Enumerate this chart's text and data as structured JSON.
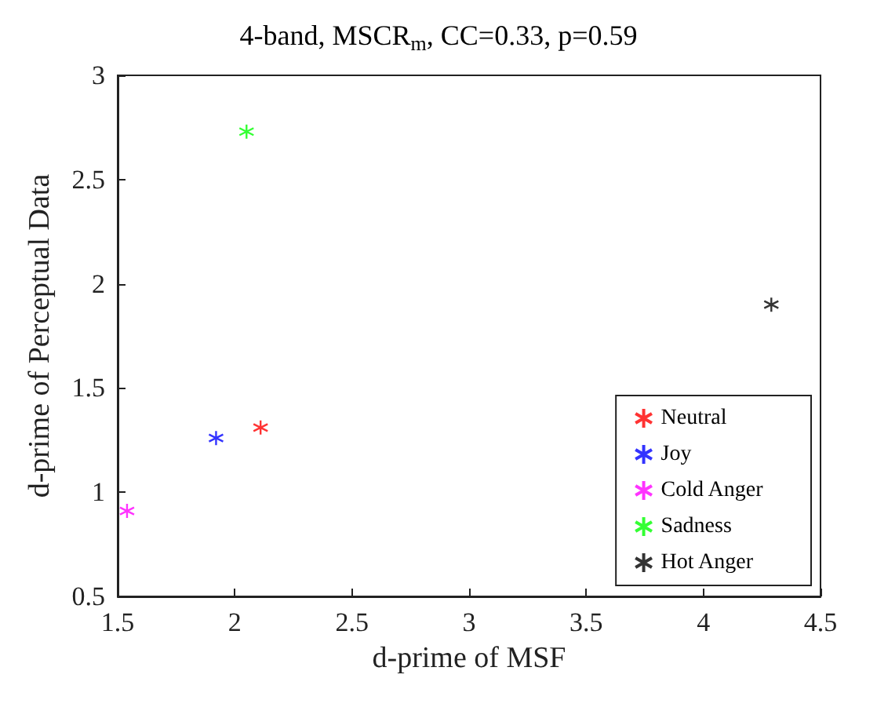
{
  "chart_data": {
    "type": "scatter",
    "title": "4-band, MSCR$_{m}$, CC=0.33, p=0.59",
    "xlabel": "d-prime of MSF",
    "ylabel": "d-prime of Perceptual Data",
    "xlim": [
      1.5,
      4.5
    ],
    "xticks": [
      1.5,
      2,
      2.5,
      3,
      3.5,
      4,
      4.5
    ],
    "ylim": [
      0.5,
      3
    ],
    "yticks": [
      0.5,
      1,
      1.5,
      2,
      2.5,
      3
    ],
    "marker": "cross",
    "grid": false,
    "legend": "bottom right",
    "series": [
      {
        "name": "Neutral",
        "color": "#ff0000",
        "x": [
          2.11
        ],
        "values": [
          1.31
        ]
      },
      {
        "name": "Joy",
        "color": "#0000ff",
        "x": [
          1.92
        ],
        "values": [
          1.26
        ]
      },
      {
        "name": "Cold Anger",
        "color": "#ff00ff",
        "x": [
          1.54
        ],
        "values": [
          0.91
        ]
      },
      {
        "name": "Sadness",
        "color": "#00ff00",
        "x": [
          2.05
        ],
        "values": [
          2.73
        ]
      },
      {
        "name": "Hot Anger",
        "color": "#000000",
        "x": [
          4.29
        ],
        "values": [
          1.9
        ]
      }
    ]
  }
}
